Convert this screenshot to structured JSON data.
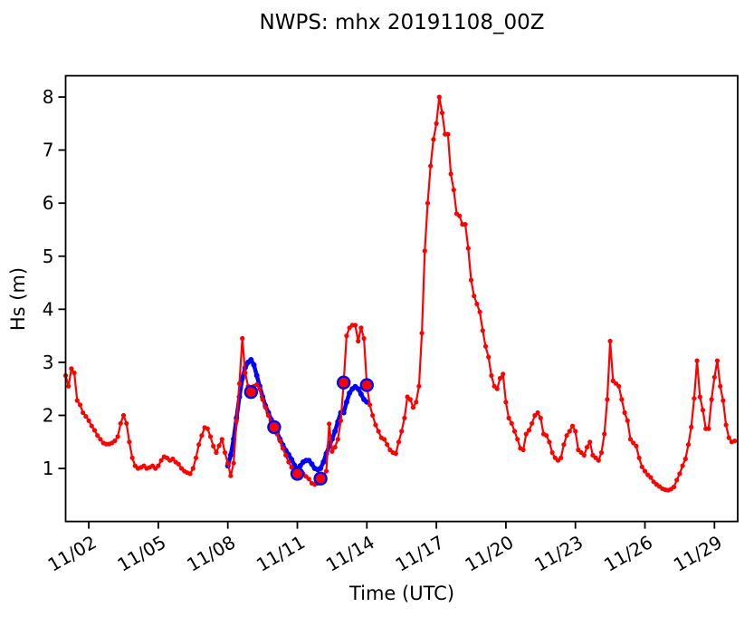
{
  "header": {
    "title": "NWPS: mhx 20191108_00Z"
  },
  "axes": {
    "xlabel": "Time (UTC)",
    "ylabel": "Hs (m)"
  },
  "colors": {
    "observations": "#ff0000",
    "model": "#0000ff",
    "axis": "#000000",
    "background": "#ffffff"
  },
  "chart_data": {
    "type": "line",
    "title": "NWPS: mhx 20191108_00Z",
    "xlabel": "Time (UTC)",
    "ylabel": "Hs (m)",
    "grid": false,
    "legend": "none",
    "ylim": [
      0,
      8.4
    ],
    "y_tick_values": [
      1,
      2,
      3,
      4,
      5,
      6,
      7,
      8
    ],
    "y_tick_labels": [
      "1",
      "2",
      "3",
      "4",
      "5",
      "6",
      "7",
      "8"
    ],
    "x_tick_days": [
      1,
      4,
      7,
      10,
      13,
      16,
      19,
      22,
      25,
      28
    ],
    "x_tick_labels": [
      "11/02",
      "11/05",
      "11/08",
      "11/11",
      "11/14",
      "11/17",
      "11/20",
      "11/23",
      "11/26",
      "11/29"
    ],
    "x_origin": "2019-11-01 00:00 UTC",
    "x_span_days": 29,
    "series": [
      {
        "name": "model-forecast-hs",
        "color": "#0000ff",
        "start_hours": 168,
        "interval_hours": 3,
        "values": [
          1.05,
          1.25,
          1.55,
          1.95,
          2.35,
          2.7,
          2.9,
          3.0,
          3.05,
          2.95,
          2.75,
          2.55,
          2.35,
          2.18,
          2.05,
          1.92,
          1.8,
          1.68,
          1.55,
          1.44,
          1.34,
          1.26,
          1.17,
          1.06,
          0.97,
          1.05,
          1.12,
          1.15,
          1.15,
          1.08,
          1.0,
          0.98,
          1.0,
          1.12,
          1.28,
          1.42,
          1.55,
          1.7,
          1.88,
          2.05,
          2.05,
          2.25,
          2.42,
          2.5,
          2.54,
          2.5,
          2.4,
          2.3,
          2.25
        ]
      },
      {
        "name": "observed-hs",
        "color": "#ff0000",
        "start_hours": 0,
        "interval_hours": 3,
        "values": [
          2.75,
          2.55,
          2.88,
          2.8,
          2.28,
          2.2,
          2.05,
          1.98,
          1.9,
          1.8,
          1.72,
          1.62,
          1.55,
          1.48,
          1.46,
          1.46,
          1.48,
          1.52,
          1.6,
          1.85,
          2.0,
          1.85,
          1.5,
          1.2,
          1.05,
          1.0,
          1.02,
          1.05,
          1.0,
          1.02,
          1.05,
          1.0,
          1.05,
          1.15,
          1.22,
          1.2,
          1.15,
          1.18,
          1.12,
          1.08,
          1.0,
          0.95,
          0.92,
          0.9,
          1.0,
          1.2,
          1.45,
          1.62,
          1.77,
          1.75,
          1.6,
          1.42,
          1.3,
          1.43,
          1.55,
          1.3,
          1.1,
          0.86,
          1.1,
          1.9,
          2.6,
          3.45,
          2.8,
          2.55,
          2.44,
          2.55,
          2.58,
          2.5,
          2.3,
          2.15,
          2.0,
          1.88,
          1.78,
          1.65,
          1.52,
          1.38,
          1.25,
          1.12,
          1.02,
          0.95,
          0.9,
          0.86,
          0.9,
          0.85,
          0.8,
          0.72,
          0.7,
          0.72,
          0.81,
          0.85,
          0.95,
          1.84,
          1.32,
          1.4,
          1.55,
          1.9,
          2.62,
          3.5,
          3.65,
          3.7,
          3.7,
          3.4,
          3.65,
          3.45,
          2.57,
          2.2,
          2.0,
          1.82,
          1.7,
          1.58,
          1.55,
          1.45,
          1.35,
          1.3,
          1.28,
          1.5,
          1.7,
          1.95,
          2.35,
          2.3,
          2.15,
          2.25,
          2.55,
          3.55,
          5.1,
          6.0,
          6.7,
          7.2,
          7.5,
          8.0,
          7.7,
          7.3,
          7.3,
          6.55,
          6.25,
          5.8,
          5.76,
          5.6,
          5.6,
          5.15,
          4.55,
          4.25,
          4.1,
          3.95,
          3.6,
          3.3,
          3.1,
          2.75,
          2.55,
          2.5,
          2.7,
          2.78,
          2.25,
          1.95,
          1.85,
          1.7,
          1.55,
          1.38,
          1.35,
          1.65,
          1.72,
          1.85,
          2.0,
          2.05,
          1.95,
          1.65,
          1.62,
          1.5,
          1.3,
          1.2,
          1.15,
          1.2,
          1.45,
          1.62,
          1.7,
          1.8,
          1.7,
          1.35,
          1.3,
          1.25,
          1.4,
          1.5,
          1.25,
          1.2,
          1.15,
          1.3,
          1.65,
          2.3,
          3.4,
          2.65,
          2.6,
          2.55,
          2.3,
          2.05,
          1.9,
          1.55,
          1.48,
          1.42,
          1.2,
          1.03,
          0.95,
          0.88,
          0.83,
          0.75,
          0.7,
          0.66,
          0.62,
          0.6,
          0.59,
          0.61,
          0.65,
          0.78,
          0.9,
          1.05,
          1.18,
          1.45,
          1.78,
          2.32,
          3.03,
          2.35,
          2.1,
          1.75,
          1.75,
          2.3,
          2.72,
          3.03,
          2.55,
          2.28,
          1.82,
          1.58,
          1.5,
          1.52
        ]
      }
    ],
    "daily_markers": {
      "name": "daily-00z-markers",
      "edge_color": "#0000ff",
      "face_color": "#ff0000",
      "start_hours": 192,
      "interval_hours": 24,
      "values": [
        2.44,
        1.78,
        0.9,
        0.81,
        2.62,
        2.57
      ]
    }
  }
}
